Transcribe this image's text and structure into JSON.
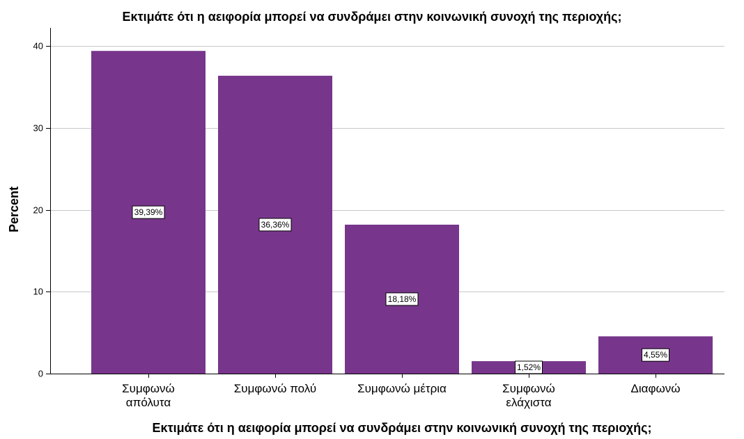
{
  "chart_data": {
    "type": "bar",
    "title": "Εκτιμάτε ότι η αειφορία μπορεί να συνδράμει στην κοινωνική συνοχή της περιοχής;",
    "xlabel": "Εκτιμάτε ότι η αειφορία μπορεί να συνδράμει στην κοινωνική συνοχή της περιοχής;",
    "ylabel": "Percent",
    "categories": [
      [
        "Συμφωνώ",
        "απόλυτα"
      ],
      [
        "Συμφωνώ πολύ"
      ],
      [
        "Συμφωνώ μέτρια"
      ],
      [
        "Συμφωνώ",
        "ελάχιστα"
      ],
      [
        "Διαφωνώ"
      ]
    ],
    "values": [
      39.39,
      36.36,
      18.18,
      1.52,
      4.55
    ],
    "data_labels": [
      "39,39%",
      "36,36%",
      "18,18%",
      "1,52%",
      "4,55%"
    ],
    "ylim": [
      0,
      40
    ],
    "yticks": [
      0,
      10,
      20,
      30,
      40
    ],
    "grid": true,
    "bar_color": "#77368b",
    "grid_color": "#c8c8c8"
  }
}
